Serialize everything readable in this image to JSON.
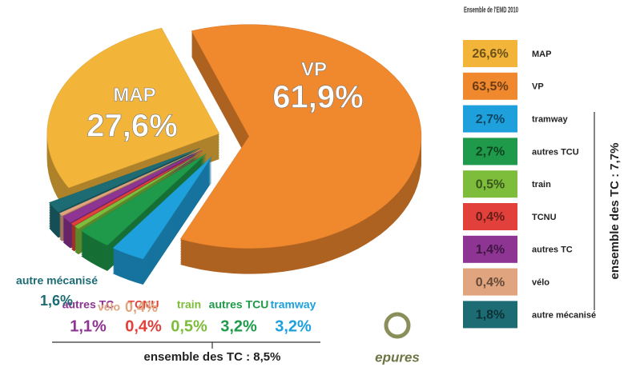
{
  "chart_data": [
    {
      "type": "pie",
      "categories": [
        "MAP",
        "VP",
        "tramway",
        "autres TCU",
        "train",
        "TCNU",
        "autres TC",
        "vélo",
        "autre mécanisé"
      ],
      "values": [
        27.6,
        61.9,
        3.2,
        3.2,
        0.5,
        0.4,
        1.1,
        0.4,
        1.6
      ],
      "value_labels": [
        "27,6%",
        "61,9%",
        "3,2%",
        "3,2%",
        "0,5%",
        "0,4%",
        "1,1%",
        "0,4%",
        "1,6%"
      ],
      "colors": [
        "#f2b53a",
        "#f0882e",
        "#1ea0dc",
        "#1f9a4a",
        "#7dbd3b",
        "#e2403a",
        "#8e3493",
        "#e0a47e",
        "#1d6c74"
      ],
      "annotation": "ensemble des TC : 8,5%"
    },
    {
      "type": "table",
      "title": "Ensemble de l'EMD 2010",
      "categories": [
        "MAP",
        "VP",
        "tramway",
        "autres TCU",
        "train",
        "TCNU",
        "autres TC",
        "vélo",
        "autre mécanisé"
      ],
      "values": [
        26.6,
        63.5,
        2.7,
        2.7,
        0.5,
        0.4,
        1.4,
        0.4,
        1.8
      ],
      "value_labels": [
        "26,6%",
        "63,5%",
        "2,7%",
        "2,7%",
        "0,5%",
        "0,4%",
        "1,4%",
        "0,4%",
        "1,8%"
      ],
      "colors": [
        "#f2b53a",
        "#f0882e",
        "#1ea0dc",
        "#1f9a4a",
        "#7dbd3b",
        "#e2403a",
        "#8e3493",
        "#e0a47e",
        "#1d6c74"
      ],
      "annotation": "ensemble des TC : 7,7%"
    }
  ],
  "logo": "epures"
}
